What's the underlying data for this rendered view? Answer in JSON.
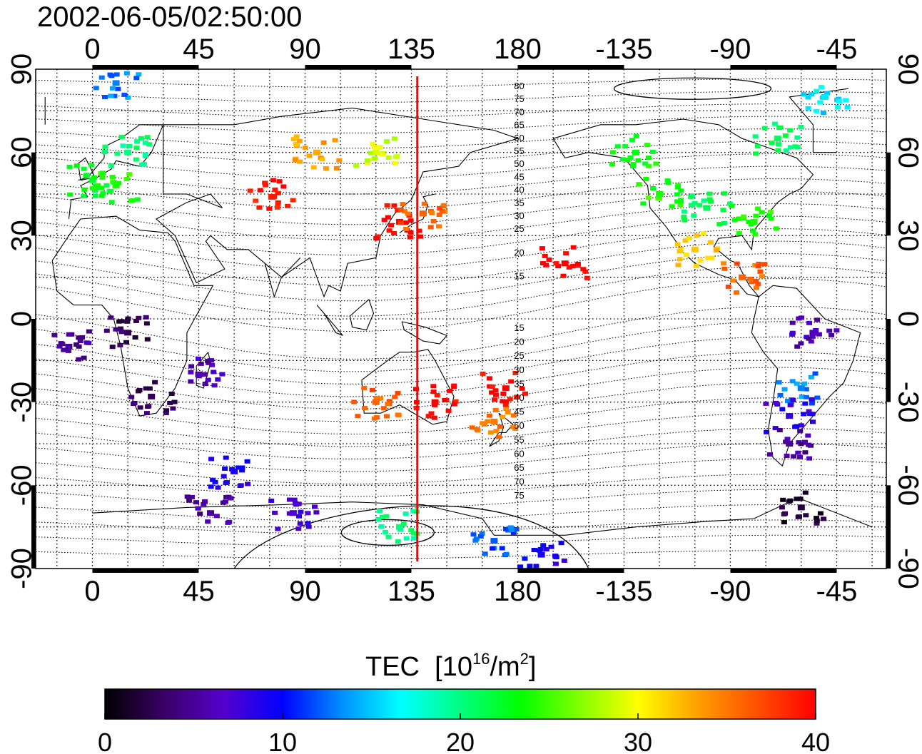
{
  "title": "2002-06-05/02:50:00",
  "x_ticks": [
    "0",
    "45",
    "90",
    "135",
    "180",
    "-135",
    "-90",
    "-45"
  ],
  "y_ticks": [
    "90",
    "60",
    "30",
    "0",
    "-30",
    "-60",
    "-90"
  ],
  "contour_labels_north": [
    "80",
    "75",
    "70",
    "65",
    "60",
    "55",
    "50",
    "45",
    "40",
    "35",
    "30",
    "25",
    "20",
    "15"
  ],
  "contour_labels_south": [
    "15",
    "20",
    "25",
    "30",
    "35",
    "40",
    "45",
    "50",
    "55",
    "60",
    "65",
    "70",
    "75"
  ],
  "colorbar": {
    "title": "TEC",
    "unit_base": "10",
    "unit_exp": "16",
    "unit_mid": "/m",
    "unit_exp2": "2",
    "ticks": [
      "0",
      "10",
      "20",
      "30",
      "40"
    ],
    "min": 0,
    "max": 40,
    "colors": [
      "#000000",
      "#3a0066",
      "#5500cc",
      "#0000ff",
      "#0090ff",
      "#00ffff",
      "#00ff80",
      "#00ff00",
      "#80ff00",
      "#ffff00",
      "#ffa000",
      "#ff5000",
      "#ff0000"
    ]
  },
  "map": {
    "center_lon_start": -24,
    "noon_meridian_lon": 137.5,
    "noon_line_color": "#ff0000"
  },
  "chart_data": {
    "type": "heatmap",
    "title": "2002-06-05/02:50:00",
    "x_unit": "longitude (deg)",
    "y_unit": "latitude (deg)",
    "xlim": [
      -24,
      336
    ],
    "ylim": [
      -90,
      90
    ],
    "value_range": [
      0,
      40
    ],
    "points": [
      {
        "lon": 0,
        "lat": 50,
        "tec": 22
      },
      {
        "lon": 10,
        "lat": 48,
        "tec": 24
      },
      {
        "lon": 15,
        "lat": 60,
        "tec": 20
      },
      {
        "lon": 76,
        "lat": 44,
        "tec": 39
      },
      {
        "lon": 130,
        "lat": 35,
        "tec": 40
      },
      {
        "lon": 140,
        "lat": 38,
        "tec": 36
      },
      {
        "lon": 120,
        "lat": 60,
        "tec": 29
      },
      {
        "lon": 95,
        "lat": 60,
        "tec": 33
      },
      {
        "lon": 170,
        "lat": -37,
        "tec": 35
      },
      {
        "lon": 175,
        "lat": -25,
        "tec": 40
      },
      {
        "lon": 145,
        "lat": -30,
        "tec": 40
      },
      {
        "lon": 120,
        "lat": -30,
        "tec": 36
      },
      {
        "lon": 25,
        "lat": -28,
        "tec": 3
      },
      {
        "lon": 15,
        "lat": -5,
        "tec": 3
      },
      {
        "lon": -10,
        "lat": -10,
        "tec": 5
      },
      {
        "lon": 240,
        "lat": 45,
        "tec": 24
      },
      {
        "lon": 260,
        "lat": 40,
        "tec": 21
      },
      {
        "lon": 280,
        "lat": 35,
        "tec": 24
      },
      {
        "lon": 255,
        "lat": 25,
        "tec": 32
      },
      {
        "lon": 275,
        "lat": 15,
        "tec": 36
      },
      {
        "lon": 305,
        "lat": -5,
        "tec": 6
      },
      {
        "lon": 300,
        "lat": -25,
        "tec": 13
      },
      {
        "lon": 295,
        "lat": -35,
        "tec": 8
      },
      {
        "lon": 295,
        "lat": -45,
        "tec": 5
      },
      {
        "lon": 300,
        "lat": -68,
        "tec": 2
      },
      {
        "lon": 50,
        "lat": -70,
        "tec": 5
      },
      {
        "lon": 85,
        "lat": -70,
        "tec": 7
      },
      {
        "lon": 130,
        "lat": -75,
        "tec": 20
      },
      {
        "lon": 170,
        "lat": -80,
        "tec": 12
      },
      {
        "lon": 190,
        "lat": -85,
        "tec": 9
      },
      {
        "lon": 60,
        "lat": -55,
        "tec": 9
      },
      {
        "lon": 45,
        "lat": -20,
        "tec": 6
      },
      {
        "lon": 200,
        "lat": 20,
        "tec": 40
      },
      {
        "lon": 230,
        "lat": 60,
        "tec": 23
      },
      {
        "lon": 290,
        "lat": 65,
        "tec": 21
      },
      {
        "lon": 310,
        "lat": 80,
        "tec": 16
      },
      {
        "lon": 10,
        "lat": 85,
        "tec": 13
      }
    ]
  }
}
